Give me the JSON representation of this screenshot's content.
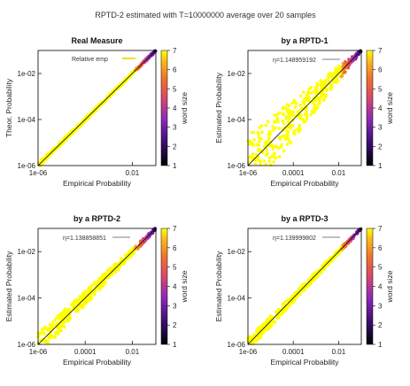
{
  "figure_title": "RPTD-2 estimated with T=10000000 average over 20 samples",
  "colorbar": {
    "label": "word size",
    "ticks": [
      "1",
      "2",
      "3",
      "4",
      "5",
      "6",
      "7"
    ]
  },
  "chart_data": [
    {
      "type": "scatter",
      "title": "Real Measure",
      "xlabel": "Empirical Probability",
      "ylabel": "Theor. Probability",
      "x_scale": "log",
      "y_scale": "log",
      "xlim": [
        1e-06,
        0.1
      ],
      "ylim": [
        1e-06,
        0.1
      ],
      "x_ticks": [
        "1e-06",
        "0.01"
      ],
      "y_ticks": [
        "1e-06",
        "1e-04",
        "1e-02"
      ],
      "legend": {
        "label": "Relative emp",
        "placement": "top-left"
      },
      "spread": 0.03,
      "series": [
        {
          "x": [
            1e-06,
            0.1
          ],
          "y": [
            1e-06,
            0.1
          ]
        }
      ]
    },
    {
      "type": "scatter",
      "title": "by a RPTD-1",
      "xlabel": "Empirical Probability",
      "ylabel": "Estimated Probability",
      "x_scale": "log",
      "y_scale": "log",
      "xlim": [
        1e-06,
        0.1
      ],
      "ylim": [
        1e-06,
        0.1
      ],
      "x_ticks": [
        "1e-06",
        "0.0001",
        "0.01"
      ],
      "y_ticks": [
        "1e-06",
        "1e-04",
        "1e-02"
      ],
      "annotation": "η=1.148959192",
      "spread": 0.9,
      "series": [
        {
          "x": [
            1e-06,
            0.1
          ],
          "y": [
            1e-06,
            0.1
          ]
        }
      ]
    },
    {
      "type": "scatter",
      "title": "by a RPTD-2",
      "xlabel": "Empirical Probability",
      "ylabel": "Estimated Probability",
      "x_scale": "log",
      "y_scale": "log",
      "xlim": [
        1e-06,
        0.1
      ],
      "ylim": [
        1e-06,
        0.1
      ],
      "x_ticks": [
        "1e-06",
        "0.0001",
        "0.01"
      ],
      "y_ticks": [
        "1e-06",
        "1e-04",
        "1e-02"
      ],
      "annotation": "η=1.138858851",
      "spread": 0.3,
      "series": [
        {
          "x": [
            1e-06,
            0.1
          ],
          "y": [
            1e-06,
            0.1
          ]
        }
      ]
    },
    {
      "type": "scatter",
      "title": "by a RPTD-3",
      "xlabel": "Empirical Probability",
      "ylabel": "Estimated Probability",
      "x_scale": "log",
      "y_scale": "log",
      "xlim": [
        1e-06,
        0.1
      ],
      "ylim": [
        1e-06,
        0.1
      ],
      "x_ticks": [
        "1e-06",
        "0.0001",
        "0.01"
      ],
      "y_ticks": [
        "1e-06",
        "1e-04",
        "1e-02"
      ],
      "annotation": "η=1.139999802",
      "spread": 0.15,
      "series": [
        {
          "x": [
            1e-06,
            0.1
          ],
          "y": [
            1e-06,
            0.1
          ]
        }
      ]
    }
  ]
}
